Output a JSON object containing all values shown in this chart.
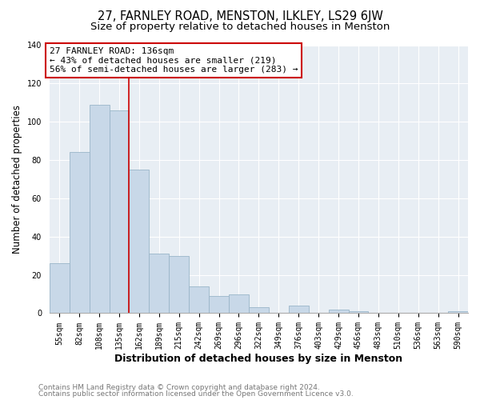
{
  "title": "27, FARNLEY ROAD, MENSTON, ILKLEY, LS29 6JW",
  "subtitle": "Size of property relative to detached houses in Menston",
  "xlabel": "Distribution of detached houses by size in Menston",
  "ylabel": "Number of detached properties",
  "bar_labels": [
    "55sqm",
    "82sqm",
    "108sqm",
    "135sqm",
    "162sqm",
    "189sqm",
    "215sqm",
    "242sqm",
    "269sqm",
    "296sqm",
    "322sqm",
    "349sqm",
    "376sqm",
    "403sqm",
    "429sqm",
    "456sqm",
    "483sqm",
    "510sqm",
    "536sqm",
    "563sqm",
    "590sqm"
  ],
  "bar_values": [
    26,
    84,
    109,
    106,
    75,
    31,
    30,
    14,
    9,
    10,
    3,
    0,
    4,
    0,
    2,
    1,
    0,
    0,
    0,
    0,
    1
  ],
  "bar_color": "#c8d8e8",
  "bar_edge_color": "#9ab5c8",
  "vline_x": 3.5,
  "vline_color": "#cc0000",
  "annotation_title": "27 FARNLEY ROAD: 136sqm",
  "annotation_line1": "← 43% of detached houses are smaller (219)",
  "annotation_line2": "56% of semi-detached houses are larger (283) →",
  "annotation_box_color": "#ffffff",
  "annotation_box_edge_color": "#cc0000",
  "ylim": [
    0,
    140
  ],
  "yticks": [
    0,
    20,
    40,
    60,
    80,
    100,
    120,
    140
  ],
  "footer_line1": "Contains HM Land Registry data © Crown copyright and database right 2024.",
  "footer_line2": "Contains public sector information licensed under the Open Government Licence v3.0.",
  "background_color": "#ffffff",
  "plot_background_color": "#e8eef4",
  "title_fontsize": 10.5,
  "subtitle_fontsize": 9.5,
  "tick_fontsize": 7,
  "ylabel_fontsize": 8.5,
  "xlabel_fontsize": 9,
  "footer_fontsize": 6.5
}
